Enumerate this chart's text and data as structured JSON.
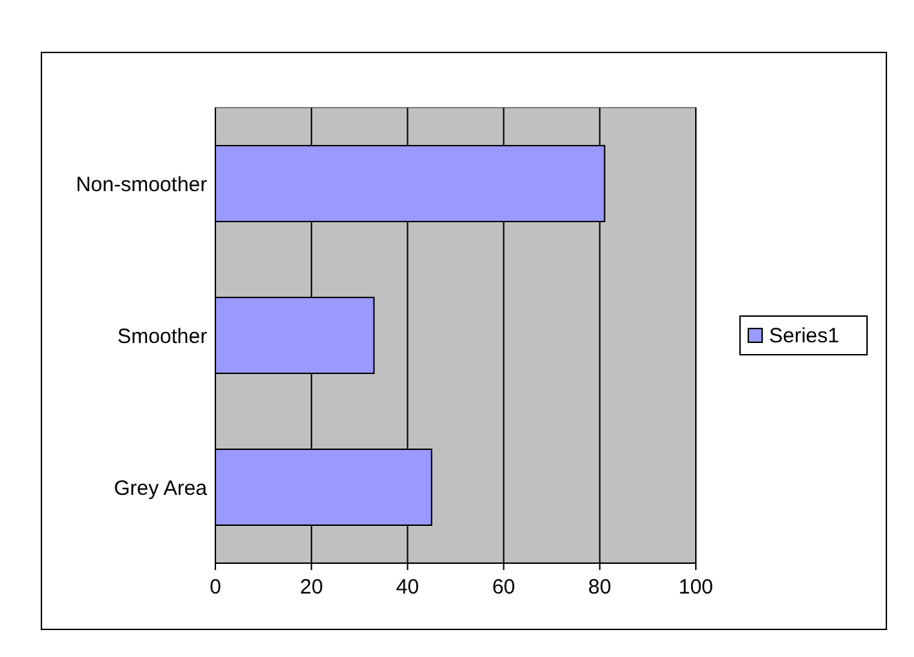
{
  "chart_data": {
    "type": "bar",
    "orientation": "horizontal",
    "categories": [
      "Non-smoother",
      "Smoother",
      "Grey Area"
    ],
    "series": [
      {
        "name": "Series1",
        "color": "#9999ff",
        "values": [
          81,
          33,
          45
        ]
      }
    ],
    "xlim": [
      0,
      100
    ],
    "xticks": [
      0,
      20,
      40,
      60,
      80,
      100
    ],
    "grid": "x",
    "legend": "right"
  }
}
